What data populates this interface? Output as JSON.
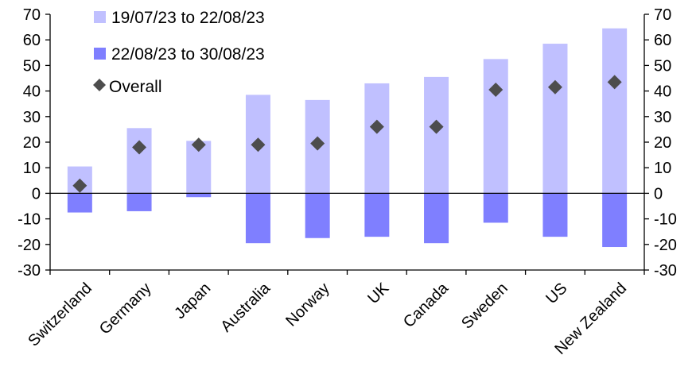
{
  "chart_data": {
    "type": "bar",
    "categories": [
      "Switzerland",
      "Germany",
      "Japan",
      "Australia",
      "Norway",
      "UK",
      "Canada",
      "Sweden",
      "US",
      "New Zealand"
    ],
    "series": [
      {
        "name": "19/07/23 to 22/08/23",
        "kind": "bar",
        "color": "#c0c0ff",
        "values": [
          10.5,
          25.5,
          20.5,
          38.5,
          36.5,
          43,
          45.5,
          52.5,
          58.5,
          64.5
        ]
      },
      {
        "name": "22/08/23 to 30/08/23",
        "kind": "bar",
        "color": "#7f7fff",
        "values": [
          -7.5,
          -7,
          -1.5,
          -19.5,
          -17.5,
          -17,
          -19.5,
          -11.5,
          -17,
          -21
        ]
      },
      {
        "name": "Overall",
        "kind": "marker",
        "color": "#4d4d4d",
        "values": [
          3,
          18,
          19,
          19,
          19.5,
          26,
          26,
          40.5,
          41.5,
          43.5
        ]
      }
    ],
    "yticks": [
      "-30",
      "-20",
      "-10",
      "0",
      "10",
      "20",
      "30",
      "40",
      "50",
      "60",
      "70"
    ],
    "ylim": [
      -30,
      70
    ],
    "grid": false,
    "legend": "top-left",
    "axes": "left-and-right"
  }
}
